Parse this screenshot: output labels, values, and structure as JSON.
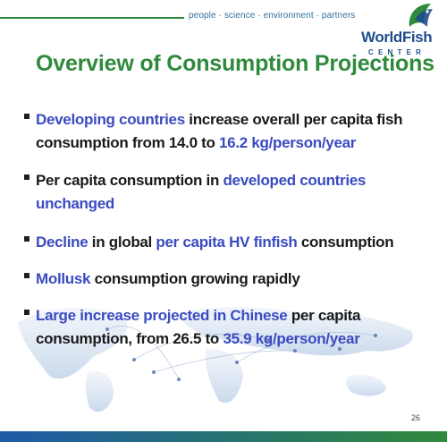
{
  "header": {
    "tagline": "people · science · environment · partners"
  },
  "logo": {
    "word": "WorldFish",
    "sub": "CENTER"
  },
  "title": "Overview of Consumption Projections",
  "bullets": [
    {
      "parts": [
        {
          "text": "Developing countries",
          "hl": true
        },
        {
          "text": " increase overall per capita fish consumption from 14.0 to ",
          "hl": false
        },
        {
          "text": "16.2 kg/person/year",
          "hl": true
        }
      ]
    },
    {
      "parts": [
        {
          "text": "Per capita consumption in ",
          "hl": false
        },
        {
          "text": "developed countries unchanged",
          "hl": true
        }
      ]
    },
    {
      "parts": [
        {
          "text": "Decline",
          "hl": true
        },
        {
          "text": " in global ",
          "hl": false
        },
        {
          "text": "per capita HV finfish",
          "hl": true
        },
        {
          "text": " consumption",
          "hl": false
        }
      ]
    },
    {
      "parts": [
        {
          "text": "Mollusk",
          "hl": true
        },
        {
          "text": " consumption growing rapidly",
          "hl": false
        }
      ]
    },
    {
      "parts": [
        {
          "text": "Large increase projected in Chinese",
          "hl": true
        },
        {
          "text": " per capita consumption, from 26.5 to ",
          "hl": false
        },
        {
          "text": "35.9 kg/person/year",
          "hl": true
        }
      ]
    }
  ],
  "footer": {
    "page_number": "26"
  },
  "colors": {
    "title_green": "#2f8a3c",
    "highlight_blue": "#3a4bc0",
    "logo_blue": "#1f4d8c"
  }
}
